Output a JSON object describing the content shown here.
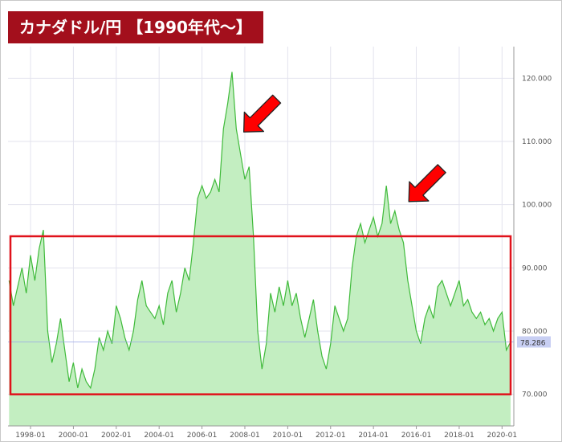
{
  "title": "カナダドル/円 【1990年代〜】",
  "colors": {
    "title_bg": "#a30f1c",
    "area_fill": "#c3eec1",
    "line": "#3fba3a",
    "highlight_box": "#e0121b",
    "arrow": "#ff0000",
    "current_label_bg": "#c8cff3"
  },
  "current_price_label": "78.286",
  "chart_data": {
    "type": "area",
    "title": "カナダドル/円 【1990年代〜】",
    "xlabel": "",
    "ylabel": "",
    "x_tick_labels": [
      "1998-01",
      "2000-01",
      "2002-01",
      "2004-01",
      "2006-01",
      "2008-01",
      "2010-01",
      "2012-01",
      "2014-01",
      "2016-01",
      "2018-01",
      "2020-01"
    ],
    "y_tick_labels": [
      "70.000",
      "80.000",
      "90.000",
      "100.000",
      "110.000",
      "120.000"
    ],
    "ylim": [
      65,
      125
    ],
    "grid": true,
    "current_value": 78.286,
    "series": [
      {
        "values": [
          [
            1997.0,
            88
          ],
          [
            1997.2,
            84
          ],
          [
            1997.4,
            87
          ],
          [
            1997.6,
            90
          ],
          [
            1997.8,
            86
          ],
          [
            1998.0,
            92
          ],
          [
            1998.2,
            88
          ],
          [
            1998.4,
            93
          ],
          [
            1998.6,
            96
          ],
          [
            1998.8,
            80
          ],
          [
            1999.0,
            75
          ],
          [
            1999.2,
            78
          ],
          [
            1999.4,
            82
          ],
          [
            1999.6,
            77
          ],
          [
            1999.8,
            72
          ],
          [
            2000.0,
            75
          ],
          [
            2000.2,
            71
          ],
          [
            2000.4,
            74
          ],
          [
            2000.6,
            72
          ],
          [
            2000.8,
            71
          ],
          [
            2001.0,
            74
          ],
          [
            2001.2,
            79
          ],
          [
            2001.4,
            77
          ],
          [
            2001.6,
            80
          ],
          [
            2001.8,
            78
          ],
          [
            2002.0,
            84
          ],
          [
            2002.2,
            82
          ],
          [
            2002.4,
            79
          ],
          [
            2002.6,
            77
          ],
          [
            2002.8,
            80
          ],
          [
            2003.0,
            85
          ],
          [
            2003.2,
            88
          ],
          [
            2003.4,
            84
          ],
          [
            2003.6,
            83
          ],
          [
            2003.8,
            82
          ],
          [
            2004.0,
            84
          ],
          [
            2004.2,
            81
          ],
          [
            2004.4,
            86
          ],
          [
            2004.6,
            88
          ],
          [
            2004.8,
            83
          ],
          [
            2005.0,
            86
          ],
          [
            2005.2,
            90
          ],
          [
            2005.4,
            88
          ],
          [
            2005.6,
            94
          ],
          [
            2005.8,
            101
          ],
          [
            2006.0,
            103
          ],
          [
            2006.2,
            101
          ],
          [
            2006.4,
            102
          ],
          [
            2006.6,
            104
          ],
          [
            2006.8,
            102
          ],
          [
            2007.0,
            112
          ],
          [
            2007.2,
            116
          ],
          [
            2007.4,
            121
          ],
          [
            2007.6,
            112
          ],
          [
            2007.8,
            108
          ],
          [
            2008.0,
            104
          ],
          [
            2008.2,
            106
          ],
          [
            2008.4,
            95
          ],
          [
            2008.6,
            80
          ],
          [
            2008.8,
            74
          ],
          [
            2009.0,
            78
          ],
          [
            2009.2,
            86
          ],
          [
            2009.4,
            83
          ],
          [
            2009.6,
            87
          ],
          [
            2009.8,
            84
          ],
          [
            2010.0,
            88
          ],
          [
            2010.2,
            84
          ],
          [
            2010.4,
            86
          ],
          [
            2010.6,
            82
          ],
          [
            2010.8,
            79
          ],
          [
            2011.0,
            82
          ],
          [
            2011.2,
            85
          ],
          [
            2011.4,
            80
          ],
          [
            2011.6,
            76
          ],
          [
            2011.8,
            74
          ],
          [
            2012.0,
            78
          ],
          [
            2012.2,
            84
          ],
          [
            2012.4,
            82
          ],
          [
            2012.6,
            80
          ],
          [
            2012.8,
            82
          ],
          [
            2013.0,
            90
          ],
          [
            2013.2,
            95
          ],
          [
            2013.4,
            97
          ],
          [
            2013.6,
            94
          ],
          [
            2013.8,
            96
          ],
          [
            2014.0,
            98
          ],
          [
            2014.2,
            95
          ],
          [
            2014.4,
            97
          ],
          [
            2014.6,
            103
          ],
          [
            2014.8,
            97
          ],
          [
            2015.0,
            99
          ],
          [
            2015.2,
            96
          ],
          [
            2015.4,
            94
          ],
          [
            2015.6,
            88
          ],
          [
            2015.8,
            84
          ],
          [
            2016.0,
            80
          ],
          [
            2016.2,
            78
          ],
          [
            2016.4,
            82
          ],
          [
            2016.6,
            84
          ],
          [
            2016.8,
            82
          ],
          [
            2017.0,
            87
          ],
          [
            2017.2,
            88
          ],
          [
            2017.4,
            86
          ],
          [
            2017.6,
            84
          ],
          [
            2017.8,
            86
          ],
          [
            2018.0,
            88
          ],
          [
            2018.2,
            84
          ],
          [
            2018.4,
            85
          ],
          [
            2018.6,
            83
          ],
          [
            2018.8,
            82
          ],
          [
            2019.0,
            83
          ],
          [
            2019.2,
            81
          ],
          [
            2019.4,
            82
          ],
          [
            2019.6,
            80
          ],
          [
            2019.8,
            82
          ],
          [
            2020.0,
            83
          ],
          [
            2020.2,
            77
          ],
          [
            2020.4,
            78.286
          ]
        ]
      }
    ],
    "annotations": {
      "highlight_range_y": [
        70,
        95
      ],
      "arrows_near": [
        [
          2007.5,
          112
        ],
        [
          2015.2,
          101
        ]
      ]
    }
  }
}
